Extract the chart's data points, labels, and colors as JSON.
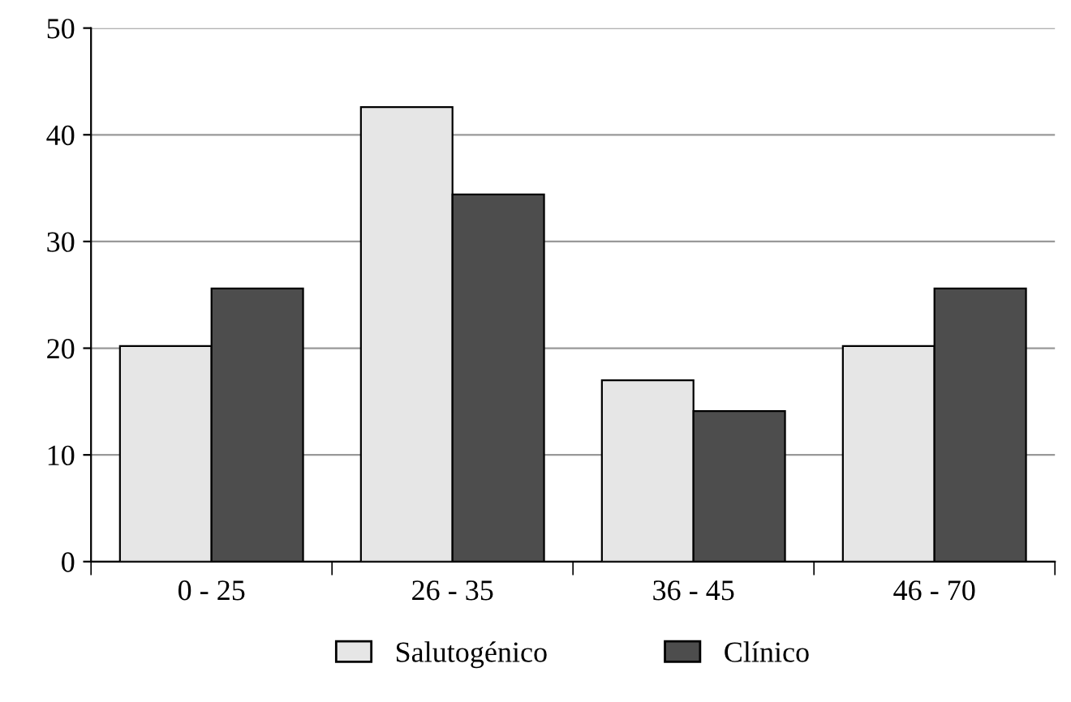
{
  "chart_data": {
    "type": "bar",
    "categories": [
      "0 - 25",
      "26 - 35",
      "36 - 45",
      "46 - 70"
    ],
    "series": [
      {
        "name": "Salutogénico",
        "color": "#e6e6e6",
        "values": [
          20.2,
          42.6,
          17,
          20.2
        ]
      },
      {
        "name": "Clínico",
        "color": "#4d4d4d",
        "values": [
          25.6,
          34.4,
          14.1,
          25.6
        ]
      }
    ],
    "ylim": [
      0,
      50
    ],
    "yticks": [
      0,
      10,
      20,
      30,
      40,
      50
    ],
    "grid": "y",
    "legend": "bottom"
  }
}
